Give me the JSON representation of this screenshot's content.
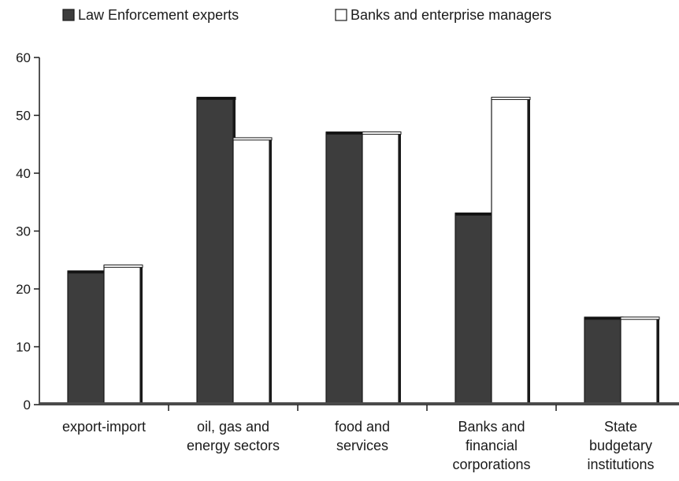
{
  "chart_data": {
    "type": "bar",
    "title": "",
    "xlabel": "",
    "ylabel": "",
    "categories": [
      [
        "export-import"
      ],
      [
        "oil, gas and",
        "energy sectors"
      ],
      [
        "food and",
        "services"
      ],
      [
        "Banks and",
        "financial",
        "corporations"
      ],
      [
        "State",
        "budgetary",
        "institutions"
      ]
    ],
    "series": [
      {
        "name": "Law Enforcement experts",
        "color": "#3d3d3d",
        "values": [
          23,
          53,
          47,
          33,
          15
        ]
      },
      {
        "name": "Banks and enterprise managers",
        "color": "#ffffff",
        "values": [
          24,
          46,
          47,
          53,
          15
        ]
      }
    ],
    "ylim": [
      0,
      60
    ],
    "yticks": [
      0,
      10,
      20,
      30,
      40,
      50,
      60
    ],
    "grid": false,
    "legend_position": "top-left"
  }
}
